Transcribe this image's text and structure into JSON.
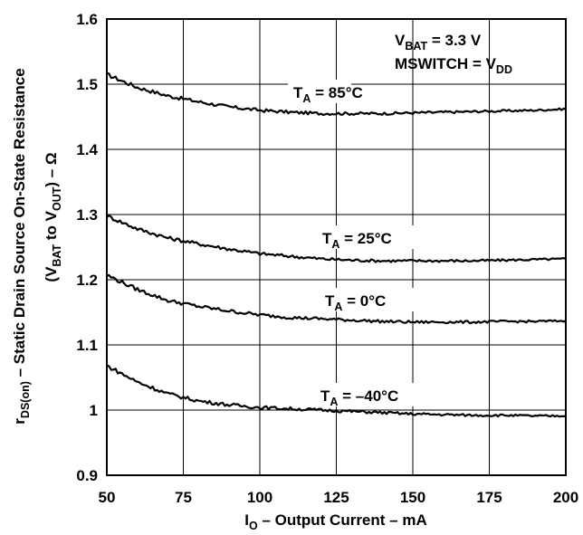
{
  "chart_data": {
    "type": "line",
    "xlabel": {
      "main": "I",
      "sub": "O",
      "rest": " – Output Current – mA"
    },
    "ylabel_line1": {
      "main": "r",
      "sub": "DS(on)",
      "rest": " – Static Drain Source On-State Resistance"
    },
    "ylabel_line2": {
      "a": "(V",
      "b": "BAT",
      "c": " to V",
      "d": "OUT",
      "e": ") – Ω"
    },
    "xlim": [
      50,
      200
    ],
    "ylim": [
      0.9,
      1.6
    ],
    "x_ticks": [
      "50",
      "75",
      "100",
      "125",
      "150",
      "175",
      "200"
    ],
    "y_ticks": [
      "0.9",
      "1",
      "1.1",
      "1.2",
      "1.3",
      "1.4",
      "1.5",
      "1.6"
    ],
    "grid": true,
    "annotation_conditions": [
      {
        "main": "V",
        "sub": "BAT",
        "rest": " = 3.3 V",
        "sub2": ""
      },
      {
        "main": "MSWITCH = V",
        "sub": "DD",
        "rest": "",
        "sub2": ""
      }
    ],
    "series": [
      {
        "label_main": "T",
        "label_sub": "A",
        "label_rest": " = 85°C",
        "x": [
          50,
          60,
          70,
          80,
          90,
          100,
          110,
          120,
          130,
          140,
          150,
          160,
          170,
          180,
          190,
          200
        ],
        "y": [
          1.515,
          1.495,
          1.482,
          1.473,
          1.465,
          1.46,
          1.457,
          1.455,
          1.455,
          1.455,
          1.456,
          1.457,
          1.458,
          1.459,
          1.46,
          1.462
        ]
      },
      {
        "label_main": "T",
        "label_sub": "A",
        "label_rest": " = 25°C",
        "x": [
          50,
          60,
          70,
          80,
          90,
          100,
          110,
          120,
          130,
          140,
          150,
          160,
          170,
          180,
          190,
          200
        ],
        "y": [
          1.298,
          1.278,
          1.264,
          1.255,
          1.247,
          1.24,
          1.236,
          1.232,
          1.23,
          1.229,
          1.229,
          1.229,
          1.229,
          1.23,
          1.231,
          1.232
        ]
      },
      {
        "label_main": "T",
        "label_sub": "A",
        "label_rest": " = 0°C",
        "x": [
          50,
          60,
          70,
          80,
          90,
          100,
          110,
          120,
          130,
          140,
          150,
          160,
          170,
          180,
          190,
          200
        ],
        "y": [
          1.207,
          1.185,
          1.168,
          1.159,
          1.152,
          1.146,
          1.142,
          1.14,
          1.138,
          1.136,
          1.135,
          1.135,
          1.135,
          1.136,
          1.136,
          1.137
        ]
      },
      {
        "label_main": "T",
        "label_sub": "A",
        "label_rest": " = –40°C",
        "x": [
          50,
          60,
          70,
          80,
          90,
          100,
          110,
          120,
          130,
          140,
          150,
          160,
          170,
          180,
          190,
          200
        ],
        "y": [
          1.068,
          1.043,
          1.025,
          1.014,
          1.008,
          1.004,
          1.002,
          1.0,
          0.998,
          0.996,
          0.994,
          0.993,
          0.992,
          0.992,
          0.991,
          0.991
        ]
      }
    ]
  }
}
